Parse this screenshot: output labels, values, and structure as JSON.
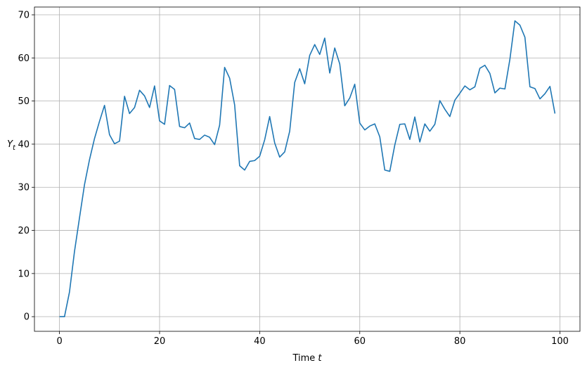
{
  "chart_data": {
    "type": "line",
    "title": "",
    "xlabel": "Time",
    "xlabel_var": "t",
    "ylabel": "Y",
    "ylabel_sub": "t",
    "xlim": [
      -5,
      104
    ],
    "ylim": [
      -3.4,
      71.8
    ],
    "xticks": [
      0,
      20,
      40,
      60,
      80,
      100
    ],
    "yticks": [
      0,
      10,
      20,
      30,
      40,
      50,
      60,
      70
    ],
    "grid": true,
    "series": [
      {
        "color": "#1f77b4",
        "x": [
          0,
          1,
          2,
          3,
          4,
          5,
          6,
          7,
          8,
          9,
          10,
          11,
          12,
          13,
          14,
          15,
          16,
          17,
          18,
          19,
          20,
          21,
          22,
          23,
          24,
          25,
          26,
          27,
          28,
          29,
          30,
          31,
          32,
          33,
          34,
          35,
          36,
          37,
          38,
          39,
          40,
          41,
          42,
          43,
          44,
          45,
          46,
          47,
          48,
          49,
          50,
          51,
          52,
          53,
          54,
          55,
          56,
          57,
          58,
          59,
          60,
          61,
          62,
          63,
          64,
          65,
          66,
          67,
          68,
          69,
          70,
          71,
          72,
          73,
          74,
          75,
          76,
          77,
          78,
          79,
          80,
          81,
          82,
          83,
          84,
          85,
          86,
          87,
          88,
          89,
          90,
          91,
          92,
          93,
          94,
          95,
          96,
          97,
          98,
          99
        ],
        "y": [
          0,
          0,
          5.7,
          15.1,
          22.9,
          30.6,
          36.4,
          41.3,
          45.3,
          49.0,
          42.2,
          40.1,
          40.7,
          51.1,
          47.1,
          48.5,
          52.5,
          51.2,
          48.5,
          53.5,
          45.4,
          44.6,
          53.6,
          52.7,
          44.1,
          43.8,
          44.9,
          41.3,
          41.1,
          42.1,
          41.6,
          39.9,
          44.4,
          57.8,
          55.3,
          49.1,
          35.0,
          34.0,
          36.0,
          36.2,
          37.2,
          41.0,
          46.4,
          40.3,
          37.0,
          38.2,
          43.0,
          54.3,
          57.5,
          54.0,
          60.6,
          63.1,
          60.8,
          64.6,
          56.5,
          62.3,
          58.6,
          48.9,
          50.7,
          53.9,
          44.9,
          43.3,
          44.2,
          44.7,
          41.7,
          34.0,
          33.7,
          39.8,
          44.6,
          44.7,
          41.1,
          46.3,
          40.5,
          44.7,
          43.0,
          44.6,
          50.1,
          48.1,
          46.4,
          50.2,
          51.8,
          53.5,
          52.6,
          53.3,
          57.6,
          58.3,
          56.4,
          51.9,
          53.0,
          52.8,
          59.7,
          68.6,
          67.6,
          64.8,
          53.3,
          52.9,
          50.5,
          51.7,
          53.4,
          47.1
        ]
      }
    ]
  }
}
